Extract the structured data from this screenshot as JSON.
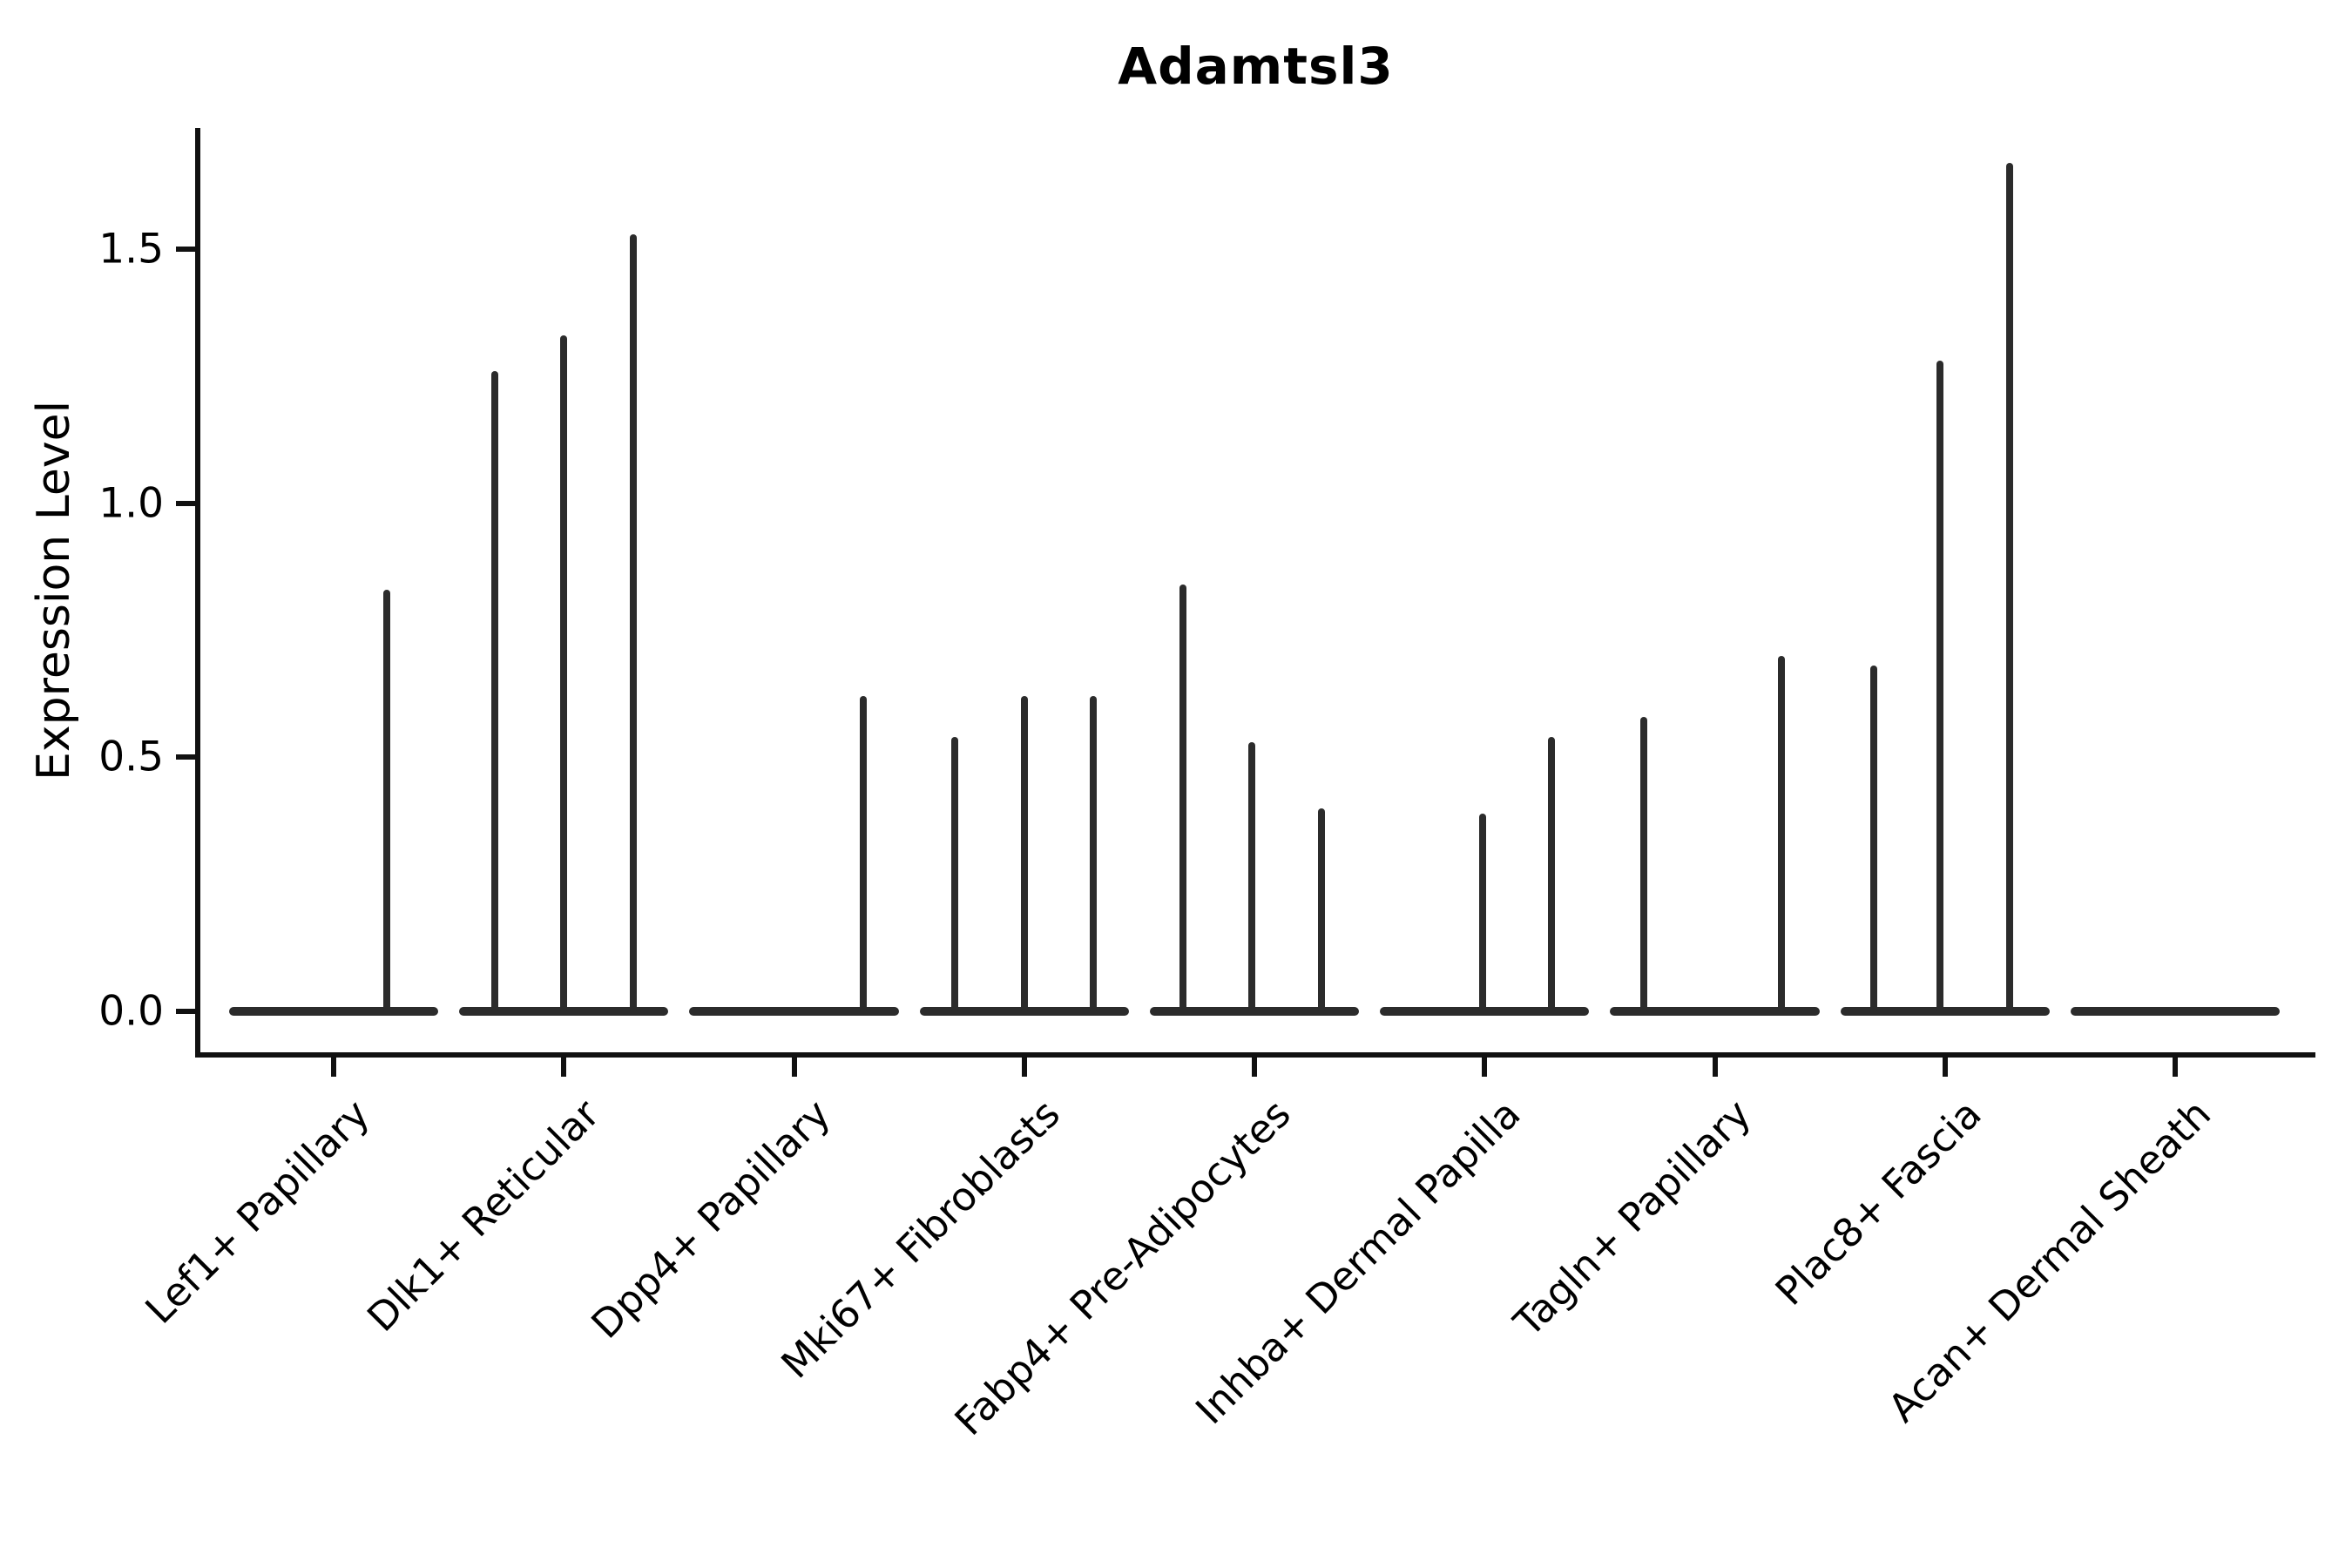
{
  "title": "Adamtsl3",
  "y_axis": {
    "label": "Expression Level",
    "ticks": [
      {
        "value": 0.0,
        "label": "0.0"
      },
      {
        "value": 0.5,
        "label": "0.5"
      },
      {
        "value": 1.0,
        "label": "1.0"
      },
      {
        "value": 1.5,
        "label": "1.5"
      }
    ]
  },
  "chart_data": {
    "type": "violin",
    "title": "Adamtsl3",
    "xlabel": "",
    "ylabel": "Expression Level",
    "ylim": [
      -0.08,
      1.74
    ],
    "yticks": [
      0.0,
      0.5,
      1.0,
      1.5
    ],
    "grid": false,
    "legend": "none",
    "description": "Single-cell expression violin plot; each category shows a violin collapsed to a flat bar at expression 0 with thin vertical spikes reaching the maximum expression of rare expressing cells.",
    "categories": [
      "Lef1+ Papillary",
      "Dlk1+ Reticular",
      "Dpp4+ Papillary",
      "Mki67+ Fibroblasts",
      "Fabp4+ Pre-Adipocytes",
      "Inhba+ Dermal Papilla",
      "Tagln+ Papillary",
      "Plac8+ Fascia",
      "Acan+ Dermal Sheath"
    ],
    "violins": [
      {
        "category": "Lef1+ Papillary",
        "baseline_value": 0.0,
        "body_width_frac": 0.91,
        "spikes": [
          {
            "x_offset_frac": 0.23,
            "max_value": 0.83
          }
        ]
      },
      {
        "category": "Dlk1+ Reticular",
        "baseline_value": 0.0,
        "body_width_frac": 0.91,
        "spikes": [
          {
            "x_offset_frac": -0.3,
            "max_value": 1.26
          },
          {
            "x_offset_frac": 0.0,
            "max_value": 1.33
          },
          {
            "x_offset_frac": 0.3,
            "max_value": 1.53
          }
        ]
      },
      {
        "category": "Dpp4+ Papillary",
        "baseline_value": 0.0,
        "body_width_frac": 0.91,
        "spikes": [
          {
            "x_offset_frac": 0.3,
            "max_value": 0.62
          }
        ]
      },
      {
        "category": "Mki67+ Fibroblasts",
        "baseline_value": 0.0,
        "body_width_frac": 0.91,
        "spikes": [
          {
            "x_offset_frac": -0.3,
            "max_value": 0.54
          },
          {
            "x_offset_frac": 0.0,
            "max_value": 0.62
          },
          {
            "x_offset_frac": 0.3,
            "max_value": 0.62
          }
        ]
      },
      {
        "category": "Fabp4+ Pre-Adipocytes",
        "baseline_value": 0.0,
        "body_width_frac": 0.91,
        "spikes": [
          {
            "x_offset_frac": -0.31,
            "max_value": 0.84
          },
          {
            "x_offset_frac": -0.01,
            "max_value": 0.53
          },
          {
            "x_offset_frac": 0.29,
            "max_value": 0.4
          }
        ]
      },
      {
        "category": "Inhba+ Dermal Papilla",
        "baseline_value": 0.0,
        "body_width_frac": 0.91,
        "spikes": [
          {
            "x_offset_frac": -0.01,
            "max_value": 0.39
          },
          {
            "x_offset_frac": 0.29,
            "max_value": 0.54
          }
        ]
      },
      {
        "category": "Tagln+ Papillary",
        "baseline_value": 0.0,
        "body_width_frac": 0.91,
        "spikes": [
          {
            "x_offset_frac": -0.31,
            "max_value": 0.58
          },
          {
            "x_offset_frac": 0.29,
            "max_value": 0.7
          }
        ]
      },
      {
        "category": "Plac8+ Fascia",
        "baseline_value": 0.0,
        "body_width_frac": 0.91,
        "spikes": [
          {
            "x_offset_frac": -0.31,
            "max_value": 0.68
          },
          {
            "x_offset_frac": -0.02,
            "max_value": 1.28
          },
          {
            "x_offset_frac": 0.28,
            "max_value": 1.67
          }
        ]
      },
      {
        "category": "Acan+ Dermal Sheath",
        "baseline_value": 0.0,
        "body_width_frac": 0.91,
        "spikes": []
      }
    ]
  },
  "colors": {
    "violin": "#2b2b2b",
    "axis": "#111111",
    "text": "#000000",
    "background": "#ffffff"
  }
}
